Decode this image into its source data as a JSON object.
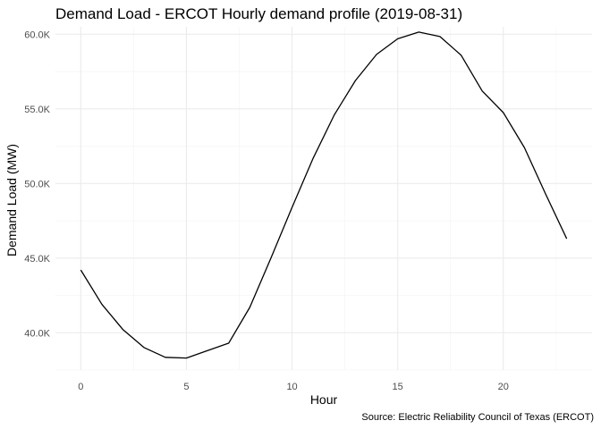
{
  "chart_data": {
    "type": "line",
    "title": "Demand Load - ERCOT Hourly demand profile (2019-08-31)",
    "xlabel": "Hour",
    "ylabel": "Demand Load (MW)",
    "caption": "Source: Electric Reliability Council of Texas (ERCOT)",
    "xlim": [
      -1.2,
      24.2
    ],
    "ylim": [
      37500,
      60500
    ],
    "x_ticks": [
      0,
      5,
      10,
      15,
      20
    ],
    "x_tick_labels": [
      "0",
      "5",
      "10",
      "15",
      "20"
    ],
    "y_ticks": [
      40000,
      45000,
      50000,
      55000,
      60000
    ],
    "y_tick_labels": [
      "40.0K",
      "45.0K",
      "50.0K",
      "55.0K",
      "60.0K"
    ],
    "grid": true,
    "line_color": "#000000",
    "series": [
      {
        "x": [
          0,
          1,
          2,
          3,
          4,
          5,
          6,
          7,
          8,
          9,
          10,
          11,
          12,
          13,
          14,
          15,
          16,
          17,
          18,
          19,
          20,
          21,
          22,
          23
        ],
        "values": [
          44200,
          41900,
          40200,
          39000,
          38350,
          38300,
          38800,
          39300,
          41700,
          45000,
          48400,
          51700,
          54600,
          56900,
          58650,
          59700,
          60150,
          59850,
          58600,
          56200,
          54750,
          52400,
          49300,
          46300
        ]
      }
    ]
  }
}
